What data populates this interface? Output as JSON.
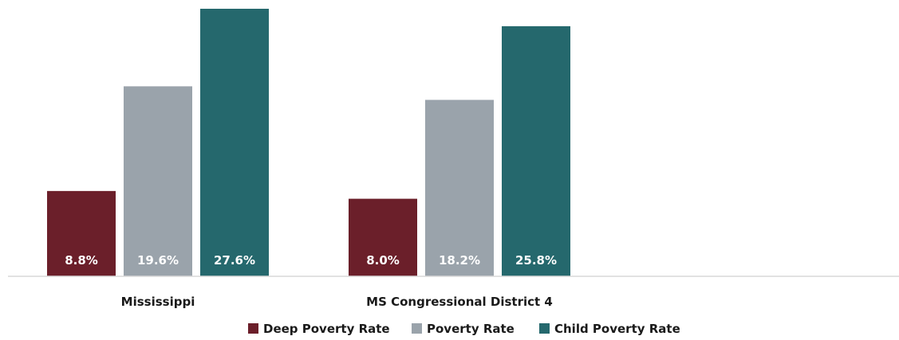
{
  "chart_data": {
    "type": "bar",
    "categories": [
      "Mississippi",
      "MS Congressional District 4"
    ],
    "series": [
      {
        "name": "Deep Poverty Rate",
        "values": [
          8.8,
          8.0
        ],
        "labels": [
          "8.8%",
          "8.0%"
        ],
        "color": "#6b1f2a"
      },
      {
        "name": "Poverty Rate",
        "values": [
          19.6,
          18.2
        ],
        "labels": [
          "19.6%",
          "18.2%"
        ],
        "color": "#9aa3ab"
      },
      {
        "name": "Child Poverty Rate",
        "values": [
          27.6,
          25.8
        ],
        "labels": [
          "27.6%",
          "25.8%"
        ],
        "color": "#25686d"
      }
    ],
    "title": "",
    "xlabel": "",
    "ylabel": "",
    "ylim": [
      0,
      27.6
    ],
    "grid": false,
    "legend_position": "bottom"
  }
}
